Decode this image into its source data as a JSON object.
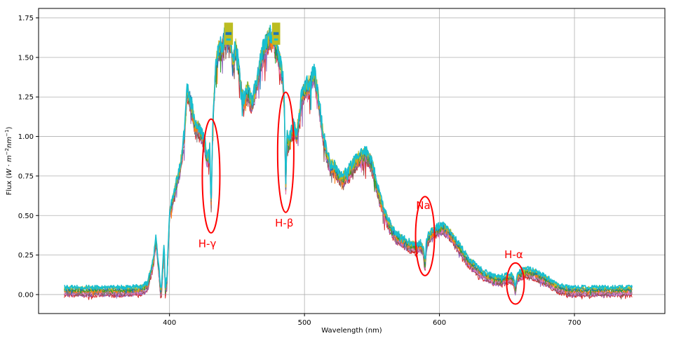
{
  "chart_data": {
    "type": "line",
    "title": "",
    "xlabel": "Wavelength (nm)",
    "ylabel": "Flux ($W \\cdot m^{-2} nm^{-1}$)",
    "ylabel_parts": {
      "prefix": "Flux (",
      "w": "W",
      "dot": " · ",
      "m": "m",
      "m_exp": "−2",
      "nm": "nm",
      "nm_exp": "−1",
      "suffix": ")"
    },
    "xlim": [
      303,
      767
    ],
    "ylim": [
      -0.12,
      1.81
    ],
    "x_ticks": [
      400,
      500,
      600,
      700
    ],
    "x_tick_labels": [
      "400",
      "500",
      "600",
      "700"
    ],
    "y_ticks": [
      0.0,
      0.25,
      0.5,
      0.75,
      1.0,
      1.25,
      1.5,
      1.75
    ],
    "y_tick_labels": [
      "0.00",
      "0.25",
      "0.50",
      "0.75",
      "1.00",
      "1.25",
      "1.50",
      "1.75"
    ],
    "grid": true,
    "series_colors": [
      "#d62728",
      "#9467bd",
      "#8c564b",
      "#e377c2",
      "#7f7f7f",
      "#ff7f0e",
      "#2ca02c",
      "#1f77b4",
      "#bcbd22",
      "#17becf"
    ],
    "envelope": {
      "x": [
        322,
        330,
        340,
        350,
        360,
        370,
        380,
        384,
        388,
        390,
        392,
        394,
        396,
        398,
        400,
        404,
        408,
        411,
        413,
        416,
        419,
        421,
        424,
        426,
        428,
        430,
        431,
        433,
        435,
        437,
        439,
        441,
        443,
        445,
        447,
        449,
        451,
        453,
        455,
        458,
        461,
        464,
        467,
        470,
        474,
        478,
        481,
        484,
        486,
        488,
        490,
        492,
        494,
        496,
        498,
        501,
        504,
        507,
        510,
        513,
        516,
        519,
        522,
        525,
        528,
        531,
        534,
        537,
        540,
        543,
        546,
        550,
        553,
        556,
        559,
        562,
        565,
        568,
        571,
        575,
        579,
        583,
        587,
        589,
        591,
        594,
        598,
        602,
        606,
        610,
        614,
        618,
        622,
        626,
        630,
        634,
        638,
        642,
        646,
        650,
        654,
        656,
        658,
        661,
        664,
        668,
        672,
        676,
        680,
        684,
        688,
        692,
        696,
        700,
        710,
        720,
        730,
        740,
        743
      ],
      "y": [
        0.02,
        0.02,
        0.02,
        0.02,
        0.02,
        0.02,
        0.03,
        0.06,
        0.2,
        0.35,
        0.15,
        0.02,
        0.3,
        0.05,
        0.5,
        0.65,
        0.8,
        1.0,
        1.28,
        1.2,
        1.05,
        1.05,
        1.0,
        0.95,
        0.85,
        0.92,
        0.8,
        1.25,
        1.5,
        1.55,
        1.55,
        1.62,
        1.65,
        1.6,
        1.45,
        1.55,
        1.45,
        1.3,
        1.2,
        1.3,
        1.2,
        1.3,
        1.45,
        1.55,
        1.62,
        1.6,
        1.5,
        1.35,
        1.05,
        0.95,
        1.0,
        1.05,
        1.0,
        1.1,
        1.25,
        1.3,
        1.32,
        1.4,
        1.25,
        1.05,
        0.9,
        0.8,
        0.8,
        0.75,
        0.72,
        0.75,
        0.78,
        0.82,
        0.85,
        0.87,
        0.88,
        0.82,
        0.7,
        0.6,
        0.52,
        0.45,
        0.4,
        0.36,
        0.35,
        0.32,
        0.3,
        0.3,
        0.3,
        0.23,
        0.34,
        0.38,
        0.4,
        0.42,
        0.4,
        0.35,
        0.3,
        0.25,
        0.2,
        0.17,
        0.14,
        0.12,
        0.1,
        0.09,
        0.09,
        0.1,
        0.1,
        0.06,
        0.11,
        0.13,
        0.14,
        0.13,
        0.12,
        0.1,
        0.08,
        0.06,
        0.04,
        0.03,
        0.02,
        0.02,
        0.02,
        0.02,
        0.02,
        0.02,
        0.02
      ],
      "dips": [
        [
          393.5,
          0.0
        ],
        [
          397,
          0.0
        ],
        [
          430.8,
          0.55
        ],
        [
          486.1,
          0.65
        ],
        [
          589.3,
          0.18
        ],
        [
          656.3,
          0.02
        ]
      ]
    },
    "annotations": [
      {
        "label": "H-γ",
        "x": 430.8,
        "y": 0.75,
        "rx_nm": 6.5,
        "ry": 0.36,
        "text_x": 428,
        "text_y": 0.3,
        "color": "#ff0000"
      },
      {
        "label": "H-β",
        "x": 486.1,
        "y": 0.9,
        "rx_nm": 6.0,
        "ry": 0.38,
        "text_x": 485,
        "text_y": 0.43,
        "color": "#ff0000"
      },
      {
        "label": "Na",
        "x": 589.3,
        "y": 0.37,
        "rx_nm": 7.0,
        "ry": 0.25,
        "text_x": 588,
        "text_y": 0.54,
        "color": "#ff0000"
      },
      {
        "label": "H-α",
        "x": 656.3,
        "y": 0.07,
        "rx_nm": 6.5,
        "ry": 0.13,
        "text_x": 655,
        "text_y": 0.23,
        "color": "#ff0000"
      }
    ]
  }
}
